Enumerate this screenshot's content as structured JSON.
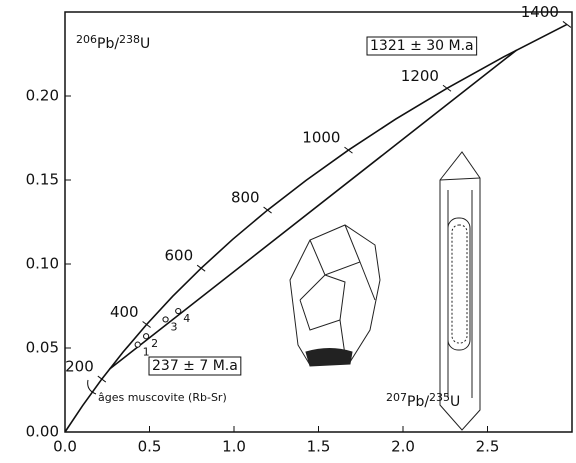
{
  "chart_data": {
    "type": "concordia",
    "xlim": [
      0,
      3.0
    ],
    "ylim": [
      0,
      0.25
    ],
    "xticks": [
      {
        "value": 0,
        "label": "0.0"
      },
      {
        "value": 0.5,
        "label": "0.5"
      },
      {
        "value": 1.0,
        "label": "1.0"
      },
      {
        "value": 1.5,
        "label": "1.5"
      },
      {
        "value": 2.0,
        "label": "2.0"
      },
      {
        "value": 2.5,
        "label": "2.5"
      }
    ],
    "yticks": [
      {
        "value": 0,
        "label": "0.00"
      },
      {
        "value": 0.05,
        "label": "0.05"
      },
      {
        "value": 0.1,
        "label": "0.10"
      },
      {
        "value": 0.15,
        "label": "0.15"
      },
      {
        "value": 0.2,
        "label": "0.20"
      }
    ],
    "y_label": [
      "206",
      "Pb/",
      "238",
      "U"
    ],
    "x_label": [
      "207",
      "Pb/",
      "235",
      "U"
    ],
    "concordia": {
      "x": [
        0,
        0.1035,
        0.2177,
        0.3438,
        0.4828,
        0.6363,
        0.8056,
        0.9925,
        1.1987,
        1.4264,
        1.6774,
        1.9546,
        2.2603,
        2.5975,
        2.97
      ],
      "y": [
        0,
        0.0156,
        0.0315,
        0.0476,
        0.064,
        0.0807,
        0.0975,
        0.1147,
        0.1321,
        0.1498,
        0.1678,
        0.1861,
        0.2046,
        0.2234,
        0.2426
      ],
      "labels": [
        null,
        null,
        "200",
        null,
        "400",
        null,
        "600",
        null,
        "800",
        null,
        "1000",
        null,
        "1200",
        null,
        "1400"
      ],
      "color": "#111111"
    },
    "discordia": {
      "x": [
        0.263,
        2.673
      ],
      "y": [
        0.0374,
        0.2274
      ],
      "color": "#111111"
    },
    "points": {
      "x": [
        0.43,
        0.48,
        0.595,
        0.67
      ],
      "y": [
        0.052,
        0.057,
        0.067,
        0.072
      ],
      "labels": [
        "1",
        "2",
        "3",
        "4"
      ]
    },
    "annotations": [
      "1321 ± 30 M.a",
      "237 ± 7 M.a",
      "âges muscovite (Rb-Sr)"
    ]
  }
}
